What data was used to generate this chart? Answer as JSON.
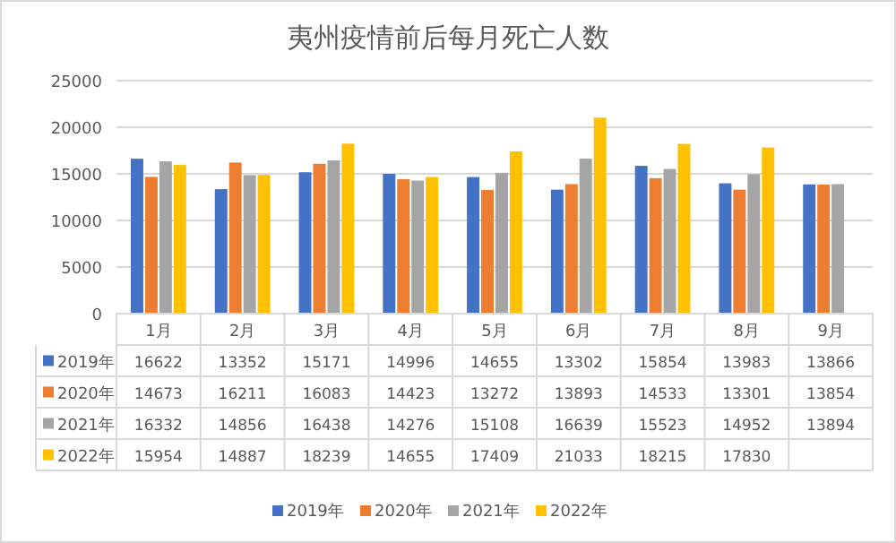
{
  "chart_data": {
    "type": "bar",
    "title": "夷州疫情前后每月死亡人数",
    "categories": [
      "1月",
      "2月",
      "3月",
      "4月",
      "5月",
      "6月",
      "7月",
      "8月",
      "9月"
    ],
    "series": [
      {
        "name": "2019年",
        "color": "#4472c4",
        "values": [
          16622,
          13352,
          15171,
          14996,
          14655,
          13302,
          15854,
          13983,
          13866
        ]
      },
      {
        "name": "2020年",
        "color": "#ed7d31",
        "values": [
          14673,
          16211,
          16083,
          14423,
          13272,
          13893,
          14533,
          13301,
          13854
        ]
      },
      {
        "name": "2021年",
        "color": "#a5a5a5",
        "values": [
          16332,
          14856,
          16438,
          14276,
          15108,
          16639,
          15523,
          14952,
          13894
        ]
      },
      {
        "name": "2022年",
        "color": "#ffc000",
        "values": [
          15954,
          14887,
          18239,
          14655,
          17409,
          21033,
          18215,
          17830,
          null
        ]
      }
    ],
    "ylim": [
      0,
      25000
    ],
    "yticks": [
      0,
      5000,
      10000,
      15000,
      20000,
      25000
    ],
    "grid": "y",
    "legend": "bottom",
    "data_labels": true
  }
}
